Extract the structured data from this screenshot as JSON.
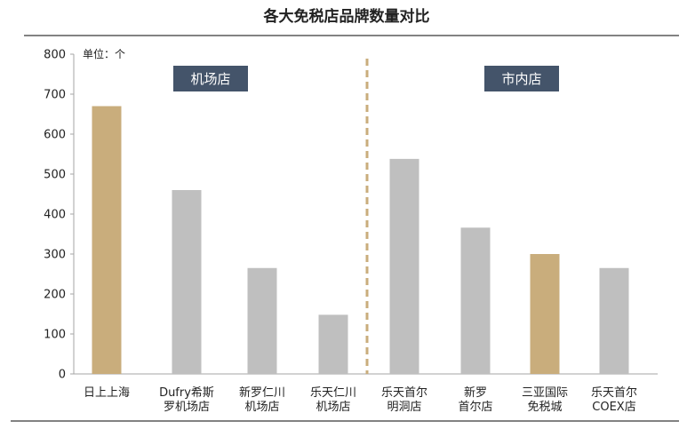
{
  "chart_data": {
    "type": "bar",
    "title": "各大免税店品牌数量对比",
    "unit_label": "单位：个",
    "ylim": [
      0,
      800
    ],
    "yticks": [
      0,
      100,
      200,
      300,
      400,
      500,
      600,
      700,
      800
    ],
    "grid": false,
    "groups": [
      {
        "label": "机场店",
        "categories": [
          0,
          1,
          2,
          3
        ]
      },
      {
        "label": "市内店",
        "categories": [
          4,
          5,
          6,
          7
        ]
      }
    ],
    "categories": [
      [
        "日上上海"
      ],
      [
        "Dufry希斯",
        "罗机场店"
      ],
      [
        "新罗仁川",
        "机场店"
      ],
      [
        "乐天仁川",
        "机场店"
      ],
      [
        "乐天首尔",
        "明洞店"
      ],
      [
        "新罗",
        "首尔店"
      ],
      [
        "三亚国际",
        "免税城"
      ],
      [
        "乐天首尔",
        "COEX店"
      ]
    ],
    "values": [
      670,
      460,
      265,
      148,
      538,
      366,
      300,
      265
    ],
    "bar_colors": [
      "#c9ad7c",
      "#bfbfbf",
      "#bfbfbf",
      "#bfbfbf",
      "#bfbfbf",
      "#bfbfbf",
      "#c9ad7c",
      "#bfbfbf"
    ]
  },
  "colors": {
    "highlight_bar": "#c9ad7c",
    "regular_bar": "#bfbfbf",
    "group_label_bg": "#44546a",
    "divider": "#c9ad7c",
    "rule_line": "#595959"
  }
}
